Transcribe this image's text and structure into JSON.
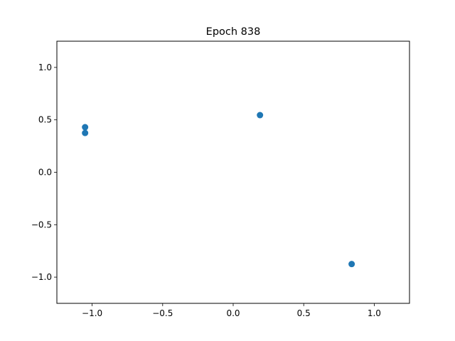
{
  "chart_data": {
    "type": "scatter",
    "title": "Epoch 838",
    "xlabel": "",
    "ylabel": "",
    "xlim": [
      -1.25,
      1.25
    ],
    "ylim": [
      -1.25,
      1.25
    ],
    "xticks": [
      -1.0,
      -0.5,
      0.0,
      0.5,
      1.0
    ],
    "xtick_labels": [
      "−1.0",
      "−0.5",
      "0.0",
      "0.5",
      "1.0"
    ],
    "yticks": [
      1.0,
      0.5,
      0.0,
      -0.5,
      -1.0
    ],
    "ytick_labels": [
      "1.0",
      "0.5",
      "0.0",
      "−0.5",
      "−1.0"
    ],
    "grid": false,
    "marker_color": "#1f77b4",
    "points": [
      {
        "x": -1.05,
        "y": 0.43
      },
      {
        "x": -1.05,
        "y": 0.375
      },
      {
        "x": 0.19,
        "y": 0.545
      },
      {
        "x": 0.84,
        "y": -0.875
      }
    ]
  }
}
